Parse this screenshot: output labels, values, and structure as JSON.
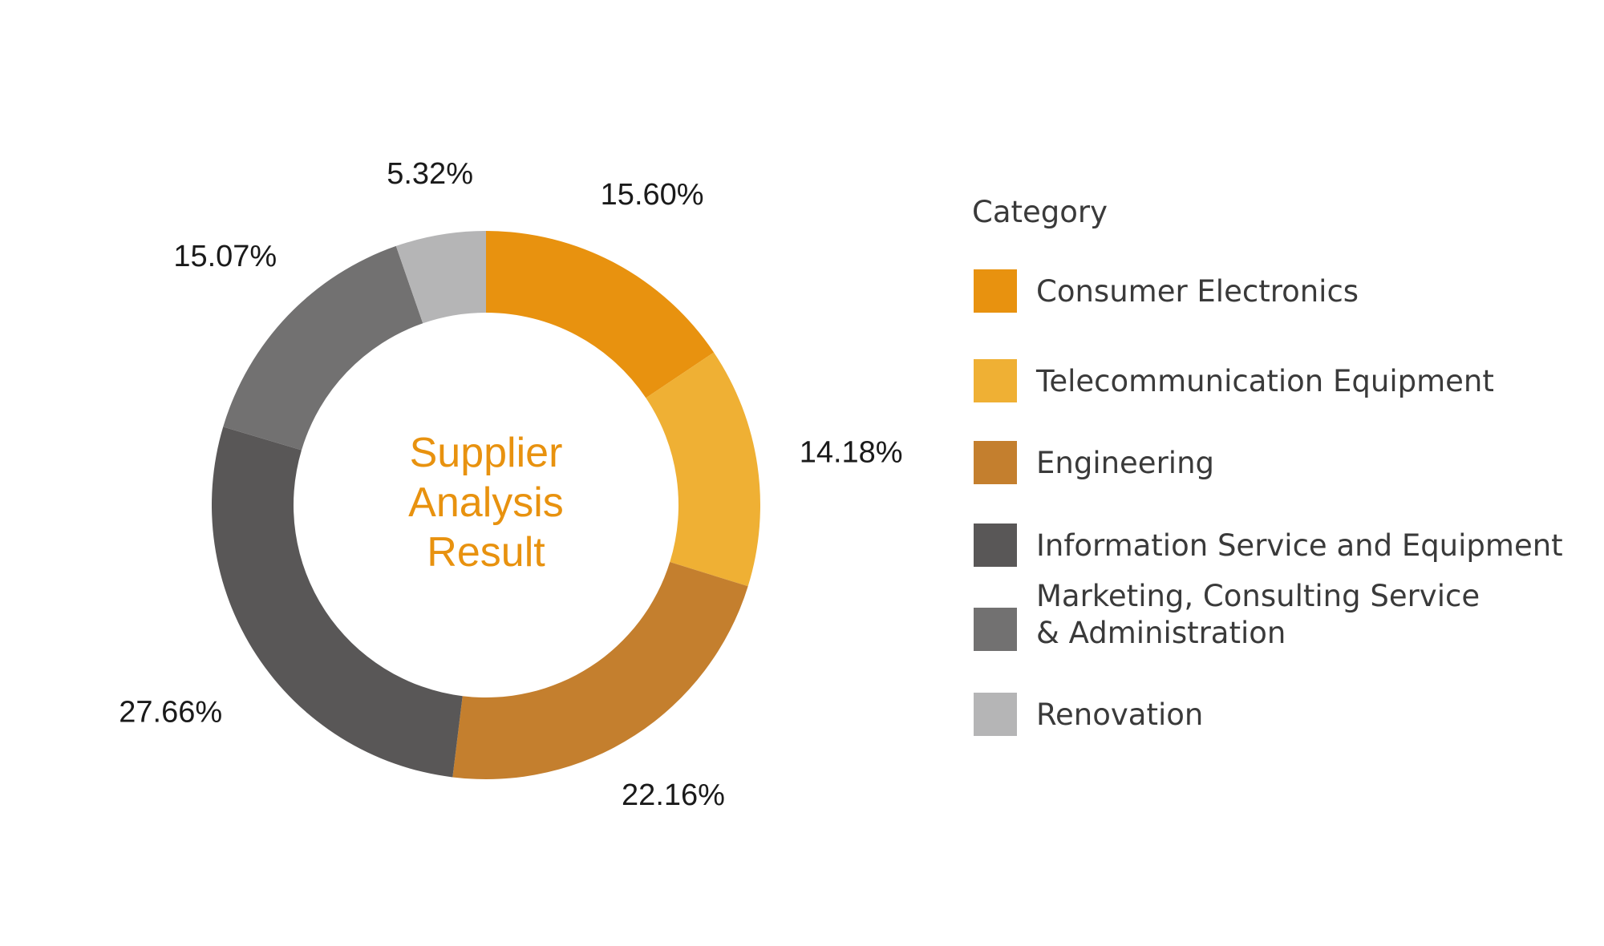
{
  "chart_data": {
    "type": "pie",
    "donut": true,
    "title": "",
    "center_text": [
      "Supplier",
      "Analysis",
      "Result"
    ],
    "legend": {
      "title": "Category",
      "placement": "right"
    },
    "slices": [
      {
        "name": "Consumer Electronics",
        "value": 15.6,
        "label": "15.60%",
        "color": "#e8920f",
        "legend_lines": [
          "Consumer Electronics"
        ]
      },
      {
        "name": "Telecommunication Equipment",
        "value": 14.18,
        "label": "14.18%",
        "color": "#efb034",
        "legend_lines": [
          "Telecommunication Equipment"
        ]
      },
      {
        "name": "Engineering",
        "value": 22.16,
        "label": "22.16%",
        "color": "#c47f2e",
        "legend_lines": [
          "Engineering"
        ]
      },
      {
        "name": "Information Service and Equipment",
        "value": 27.66,
        "label": "27.66%",
        "color": "#595757",
        "legend_lines": [
          "Information Service and Equipment"
        ]
      },
      {
        "name": "Marketing, Consulting Service & Administration",
        "value": 15.07,
        "label": "15.07%",
        "color": "#727171",
        "legend_lines": [
          "Marketing, Consulting Service",
          "& Administration"
        ]
      },
      {
        "name": "Renovation",
        "value": 5.32,
        "label": "5.32%",
        "color": "#b5b5b6",
        "legend_lines": [
          "Renovation"
        ]
      }
    ]
  }
}
